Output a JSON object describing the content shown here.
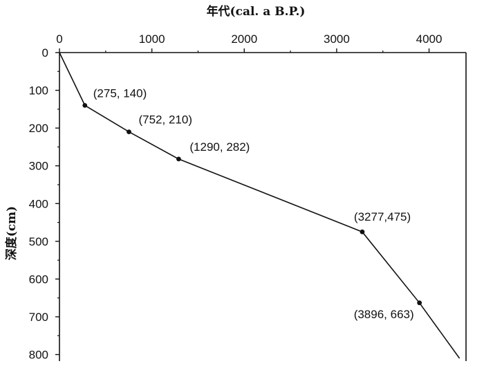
{
  "chart_data": {
    "type": "line",
    "xlabel": "年代(cal. a B.P.)",
    "ylabel": "深度(cm)",
    "x_axis_position": "top",
    "y_axis_inverted": true,
    "xlim": [
      0,
      4400
    ],
    "ylim": [
      0,
      810
    ],
    "x_ticks": [
      0,
      1000,
      2000,
      3000,
      4000
    ],
    "x_tick_labels": [
      "0",
      "1000",
      "2000",
      "3000",
      "4000"
    ],
    "y_ticks": [
      0,
      100,
      200,
      300,
      400,
      500,
      600,
      700,
      800
    ],
    "y_tick_labels": [
      "0",
      "100",
      "200",
      "300",
      "400",
      "500",
      "600",
      "700",
      "800"
    ],
    "grid": false,
    "line_color": "#111111",
    "series": [
      {
        "x": [
          0,
          275,
          752,
          1290,
          3277,
          3896,
          4330
        ],
        "y": [
          0,
          140,
          210,
          282,
          475,
          663,
          810
        ]
      }
    ],
    "markers": [
      {
        "x": 275,
        "y": 140,
        "label": "(275, 140)"
      },
      {
        "x": 752,
        "y": 210,
        "label": "(752, 210)"
      },
      {
        "x": 1290,
        "y": 282,
        "label": "(1290, 282)"
      },
      {
        "x": 3277,
        "y": 475,
        "label": "(3277,475)"
      },
      {
        "x": 3896,
        "y": 663,
        "label": "(3896, 663)"
      }
    ]
  }
}
